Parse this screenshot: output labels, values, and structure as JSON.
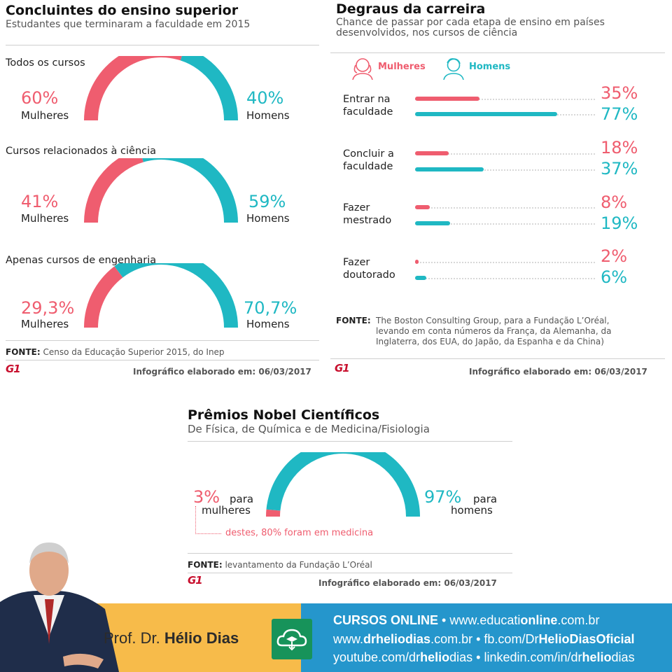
{
  "panel1": {
    "title": "Concluintes do ensino superior",
    "subtitle": "Estudantes que terminaram a faculdade em 2015",
    "source_label": "FONTE:",
    "source": "Censo da Educação Superior 2015, do Inep",
    "logo": "G1",
    "date": "Infográfico elaborado em: 06/03/2017"
  },
  "panel2": {
    "title": "Degraus da carreira",
    "subtitle": "Chance de passar por cada etapa de ensino em países desenvolvidos, nos cursos de ciência",
    "legend_women": "Mulheres",
    "legend_men": "Homens",
    "icon_women": "woman-icon",
    "icon_men": "man-icon",
    "source_label": "FONTE:",
    "source": "The Boston Consulting Group, para a Fundação L’Oréal, levando em conta números da França, da Alemanha, da Inglaterra, dos EUA, do Japão, da Espanha e da China)",
    "logo": "G1",
    "date": "Infográfico elaborado em: 06/03/2017"
  },
  "panel3": {
    "title": "Prêmios Nobel Científicos",
    "subtitle": "De Física, de Química e de Medicina/Fisiologia",
    "women_pct": "3%",
    "women_text1": "para",
    "women_text2": "mulheres",
    "men_pct": "97%",
    "men_text1": "para",
    "men_text2": "homens",
    "note": "destes, 80% foram em medicina",
    "source_label": "FONTE:",
    "source": "levantamento da Fundação L’Oréal",
    "logo": "G1",
    "date": "Infográfico elaborado em: 06/03/2017"
  },
  "colors": {
    "women": "#ef5d6f",
    "men": "#1fb8c3"
  },
  "chart_data": [
    {
      "type": "pie",
      "title": "Todos os cursos",
      "series": [
        {
          "name": "Mulheres",
          "value": 60,
          "label": "60%"
        },
        {
          "name": "Homens",
          "value": 40,
          "label": "40%"
        }
      ]
    },
    {
      "type": "pie",
      "title": "Cursos relacionados à ciência",
      "series": [
        {
          "name": "Mulheres",
          "value": 41,
          "label": "41%"
        },
        {
          "name": "Homens",
          "value": 59,
          "label": "59%"
        }
      ]
    },
    {
      "type": "pie",
      "title": "Apenas cursos de engenharia",
      "series": [
        {
          "name": "Mulheres",
          "value": 29.3,
          "label": "29,3%"
        },
        {
          "name": "Homens",
          "value": 70.7,
          "label": "70,7%"
        }
      ]
    },
    {
      "type": "bar",
      "title": "Degraus da carreira",
      "categories": [
        "Entrar na faculdade",
        "Concluir a faculdade",
        "Fazer mestrado",
        "Fazer doutorado"
      ],
      "series": [
        {
          "name": "Mulheres",
          "values": [
            35,
            18,
            8,
            2
          ],
          "labels": [
            "35%",
            "18%",
            "8%",
            "2%"
          ]
        },
        {
          "name": "Homens",
          "values": [
            77,
            37,
            19,
            6
          ],
          "labels": [
            "77%",
            "37%",
            "19%",
            "6%"
          ]
        }
      ]
    },
    {
      "type": "pie",
      "title": "Prêmios Nobel Científicos",
      "series": [
        {
          "name": "mulheres",
          "value": 3,
          "label": "3%"
        },
        {
          "name": "homens",
          "value": 97,
          "label": "97%"
        }
      ]
    }
  ],
  "footer": {
    "name_prefix": "Prof. Dr.",
    "name": "Hélio Dias",
    "cloud_icon": "cloud-education-icon",
    "line1_bold": "CURSOS ONLINE",
    "line1_sep": "•",
    "line1_url_a": "www.educati",
    "line1_url_b": "online",
    "line1_url_c": ".com.br",
    "line2_a1": "www.",
    "line2_a2": "drhelio",
    "line2_a3": "dias",
    "line2_a4": ".com.br",
    "line2_sep": "•",
    "line2_b1": "fb.com/Dr",
    "line2_b2": "HelioDiasOficial",
    "line3_a1": "youtube.com/dr",
    "line3_a2": "helio",
    "line3_a3": "dias",
    "line3_sep": "•",
    "line3_b1": "linkedin.com/in/dr",
    "line3_b2": "helio",
    "line3_b3": "dias"
  }
}
